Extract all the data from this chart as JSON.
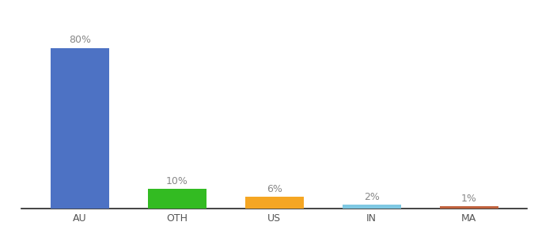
{
  "categories": [
    "AU",
    "OTH",
    "US",
    "IN",
    "MA"
  ],
  "values": [
    80,
    10,
    6,
    2,
    1
  ],
  "labels": [
    "80%",
    "10%",
    "6%",
    "2%",
    "1%"
  ],
  "bar_colors": [
    "#4d72c4",
    "#33bb22",
    "#f5a623",
    "#7ec8e3",
    "#c0623d"
  ],
  "background_color": "#ffffff",
  "ylim": [
    0,
    92
  ],
  "label_fontsize": 9,
  "tick_fontsize": 9,
  "bar_width": 0.6,
  "label_color": "#888888",
  "tick_color": "#555555",
  "spine_color": "#222222"
}
